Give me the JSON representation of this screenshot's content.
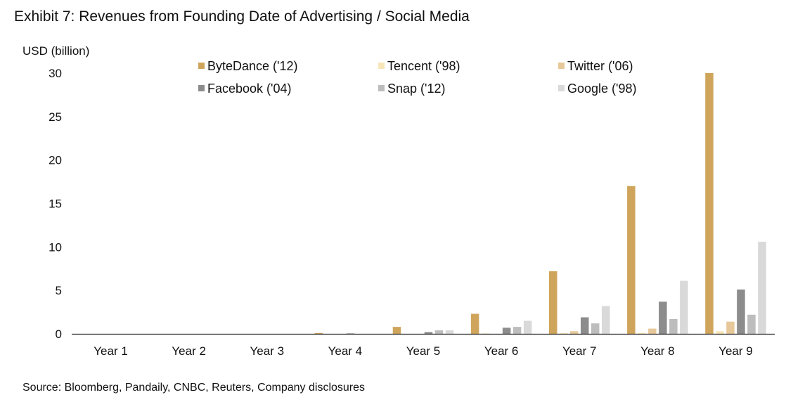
{
  "title": "Exhibit 7: Revenues from Founding Date of Advertising / Social Media",
  "source": "Source: Bloomberg, Pandaily, CNBC, Reuters, Company disclosures",
  "chart_data": {
    "type": "bar",
    "ylabel": "USD (billion)",
    "xlabel": "",
    "ylim": [
      0,
      30
    ],
    "yticks": [
      0,
      5,
      10,
      15,
      20,
      25,
      30
    ],
    "legend_position": "top",
    "categories": [
      "Year 1",
      "Year 2",
      "Year 3",
      "Year 4",
      "Year 5",
      "Year 6",
      "Year 7",
      "Year 8",
      "Year 9"
    ],
    "series": [
      {
        "name": "ByteDance ('12)",
        "color": "#cfa55c",
        "values": [
          0,
          0,
          0,
          0.1,
          0.8,
          2.3,
          7.2,
          17.0,
          30.0
        ]
      },
      {
        "name": "Tencent ('98)",
        "color": "#f7e6b8",
        "values": [
          0,
          0,
          0,
          0,
          0,
          0.05,
          0.1,
          0.1,
          0.3
        ]
      },
      {
        "name": "Twitter ('06)",
        "color": "#e7c89a",
        "values": [
          0,
          0,
          0,
          0,
          0,
          0,
          0.3,
          0.6,
          1.4
        ]
      },
      {
        "name": "Facebook ('04)",
        "color": "#8c8c8c",
        "values": [
          0,
          0,
          0,
          0.05,
          0.2,
          0.7,
          1.9,
          3.7,
          5.1
        ]
      },
      {
        "name": "Snap ('12)",
        "color": "#bdbdbd",
        "values": [
          0,
          0,
          0,
          0,
          0.4,
          0.8,
          1.2,
          1.7,
          2.2
        ]
      },
      {
        "name": "Google ('98)",
        "color": "#d9d9d9",
        "values": [
          0,
          0,
          0,
          0,
          0.4,
          1.5,
          3.2,
          6.1,
          10.6
        ]
      }
    ]
  }
}
